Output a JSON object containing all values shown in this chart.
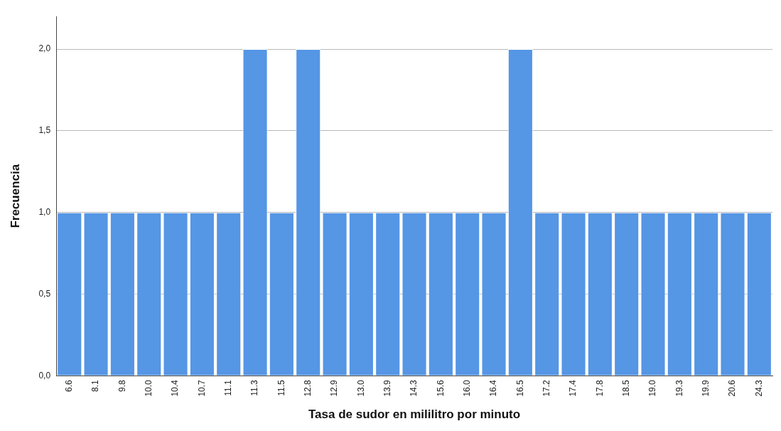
{
  "chart_data": {
    "type": "bar",
    "xlabel": "Tasa de sudor en mililitro por minuto",
    "ylabel": "Frecuencia",
    "categories": [
      "6.6",
      "8.1",
      "9.8",
      "10.0",
      "10.4",
      "10.7",
      "11.1",
      "11.3",
      "11.5",
      "12.8",
      "12.9",
      "13.0",
      "13.9",
      "14.3",
      "15.6",
      "16.0",
      "16.4",
      "16.5",
      "17.2",
      "17.4",
      "17.8",
      "18.5",
      "19.0",
      "19.3",
      "19.9",
      "20.6",
      "24.3"
    ],
    "values": [
      1,
      1,
      1,
      1,
      1,
      1,
      1,
      2,
      1,
      2,
      1,
      1,
      1,
      1,
      1,
      1,
      1,
      2,
      1,
      1,
      1,
      1,
      1,
      1,
      1,
      1,
      1
    ],
    "color": "#5596e5",
    "ylim": [
      0,
      2.2
    ],
    "yticks": [
      {
        "value": 0,
        "label": "0,0"
      },
      {
        "value": 0.5,
        "label": "0,5"
      },
      {
        "value": 1,
        "label": "1,0"
      },
      {
        "value": 1.5,
        "label": "1,5"
      },
      {
        "value": 2,
        "label": "2,0"
      }
    ],
    "grid": "y"
  }
}
